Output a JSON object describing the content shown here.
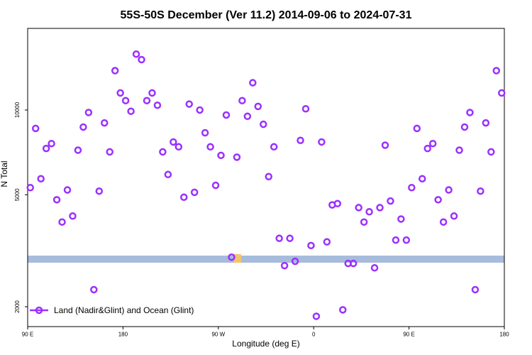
{
  "chart_data": {
    "type": "scatter",
    "title": "55S-50S December (Ver 11.2)   2014-09-06 to 2024-07-31",
    "xlabel": "Longitude (deg E)",
    "ylabel": "N Total",
    "x_ticks": [
      {
        "pos": 90,
        "label": "90 E"
      },
      {
        "pos": 180,
        "label": "180"
      },
      {
        "pos": 270,
        "label": "90 W"
      },
      {
        "pos": 360,
        "label": "0"
      },
      {
        "pos": 450,
        "label": "90 E"
      },
      {
        "pos": 540,
        "label": "180"
      }
    ],
    "y_ticks": [
      2000,
      5000,
      10000
    ],
    "y_scale": "log",
    "xlim": [
      90,
      540
    ],
    "ylim": [
      1700,
      19500
    ],
    "grid": false,
    "legend_position": "bottom-left",
    "marker_color": "#9b30ff",
    "land_band_color": "#a7bcdc",
    "land_highlight_color": "#f2c46d",
    "series": [
      {
        "name": "Land (Nadir&Glint) and Ocean (Glint)",
        "x": [
          92.5,
          97.5,
          102.5,
          107.5,
          112.5,
          117.5,
          122.5,
          127.5,
          132.5,
          137.5,
          142.5,
          147.5,
          152.5,
          157.5,
          162.5,
          167.5,
          172.5,
          177.5,
          182.5,
          187.5,
          192.5,
          197.5,
          202.5,
          207.5,
          212.5,
          217.5,
          222.5,
          227.5,
          232.5,
          237.5,
          242.5,
          247.5,
          252.5,
          257.5,
          262.5,
          267.5,
          272.5,
          277.5,
          282.5,
          287.5,
          292.5,
          297.5,
          302.5,
          307.5,
          312.5,
          317.5,
          322.5,
          327.5,
          332.5,
          337.5,
          342.5,
          347.5,
          352.5,
          357.5,
          362.5,
          367.5,
          372.5,
          377.5,
          382.5,
          387.5,
          392.5,
          397.5,
          402.5,
          407.5,
          412.5,
          417.5,
          422.5,
          427.5,
          432.5,
          437.5,
          442.5,
          447.5,
          452.5,
          457.5,
          462.5,
          467.5,
          472.5,
          477.5,
          482.5,
          487.5,
          492.5,
          497.5,
          502.5,
          507.5,
          512.5,
          517.5,
          522.5,
          527.5,
          532.5,
          537.5
        ],
        "y": [
          5300,
          8600,
          5700,
          7300,
          7600,
          4800,
          4000,
          5200,
          4200,
          7200,
          8700,
          9800,
          2300,
          5150,
          9000,
          7100,
          13800,
          11500,
          10800,
          9900,
          15800,
          15100,
          10800,
          11500,
          10400,
          7100,
          5900,
          7700,
          7400,
          4900,
          10500,
          5100,
          10000,
          8300,
          7400,
          5400,
          6900,
          9600,
          3000,
          6800,
          10800,
          9500,
          12500,
          10300,
          8900,
          5800,
          7400,
          3500,
          2800,
          3500,
          2900,
          7800,
          10100,
          3300,
          1850,
          7700,
          3400,
          4600,
          4650,
          1950,
          2850,
          2850,
          4500,
          4000,
          4350,
          2750,
          4500,
          7500,
          4750,
          3450,
          4100,
          3450,
          5300,
          8600,
          5700,
          7300,
          7600,
          4800,
          4000,
          5200,
          4200,
          7200,
          8700,
          9800,
          2300,
          5150,
          9000,
          7100,
          13800,
          11500
        ]
      }
    ]
  }
}
